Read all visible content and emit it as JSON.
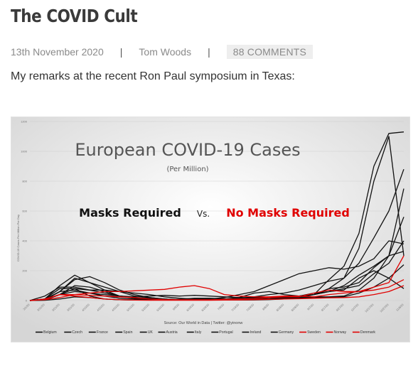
{
  "article": {
    "title": "The COVID Cult",
    "date": "13th November 2020",
    "author": "Tom Woods",
    "comments": "88 COMMENTS",
    "intro": "My remarks at the recent Ron Paul symposium in Texas:"
  },
  "chart_data": {
    "type": "line",
    "title": "European COVID-19 Cases",
    "subtitle": "(Per Million)",
    "annotation_left": "Masks Required",
    "annotation_vs": "Vs.",
    "annotation_right": "No Masks Required",
    "ylabel": "COVID-19 Cases Per Million Per Day",
    "source": "Source: Our World in Data | Twitter: @yinonw",
    "ylim": [
      0,
      1200
    ],
    "yticks": [
      0,
      200,
      400,
      600,
      800,
      1000,
      1200
    ],
    "x_ticks": [
      "3/1/20",
      "3/11/20",
      "3/21/20",
      "3/31/20",
      "4/10/20",
      "4/20/20",
      "4/30/20",
      "5/10/20",
      "5/20/20",
      "5/30/20",
      "6/9/20",
      "6/19/20",
      "6/29/20",
      "7/9/20",
      "7/19/20",
      "7/29/20",
      "8/8/20",
      "8/18/20",
      "8/28/20",
      "9/7/20",
      "9/17/20",
      "9/27/20",
      "10/7/20",
      "10/17/20",
      "10/27/20",
      "11/6/20"
    ],
    "colors": {
      "masks": "#111111",
      "no_masks": "#e00000"
    },
    "series": [
      {
        "name": "Belgium",
        "group": "masks",
        "values": [
          0,
          5,
          60,
          140,
          160,
          120,
          70,
          40,
          20,
          10,
          5,
          5,
          8,
          10,
          20,
          50,
          60,
          40,
          30,
          40,
          80,
          150,
          350,
          800,
          1100,
          300
        ]
      },
      {
        "name": "Czech",
        "group": "masks",
        "values": [
          0,
          2,
          10,
          25,
          20,
          10,
          5,
          4,
          3,
          5,
          8,
          15,
          15,
          12,
          10,
          10,
          12,
          15,
          20,
          40,
          140,
          230,
          450,
          900,
          1120,
          1130
        ]
      },
      {
        "name": "France",
        "group": "masks",
        "values": [
          0,
          5,
          40,
          100,
          90,
          60,
          30,
          20,
          15,
          10,
          5,
          5,
          8,
          10,
          15,
          25,
          40,
          50,
          70,
          100,
          130,
          150,
          250,
          420,
          600,
          880
        ]
      },
      {
        "name": "Spain",
        "group": "masks",
        "values": [
          0,
          10,
          100,
          170,
          120,
          90,
          60,
          30,
          20,
          10,
          5,
          5,
          10,
          20,
          40,
          60,
          100,
          140,
          180,
          200,
          220,
          210,
          230,
          280,
          400,
          380
        ]
      },
      {
        "name": "UK",
        "group": "masks",
        "values": [
          0,
          3,
          40,
          80,
          70,
          70,
          60,
          50,
          40,
          25,
          15,
          10,
          8,
          8,
          8,
          10,
          12,
          15,
          20,
          40,
          60,
          100,
          170,
          230,
          300,
          330
        ]
      },
      {
        "name": "Austria",
        "group": "masks",
        "values": [
          0,
          10,
          80,
          80,
          30,
          10,
          5,
          4,
          3,
          3,
          3,
          5,
          8,
          10,
          12,
          15,
          20,
          20,
          25,
          40,
          80,
          90,
          120,
          220,
          300,
          750
        ]
      },
      {
        "name": "Italy",
        "group": "masks",
        "values": [
          0,
          30,
          90,
          90,
          70,
          50,
          30,
          20,
          10,
          8,
          5,
          4,
          4,
          3,
          3,
          4,
          6,
          10,
          20,
          25,
          25,
          30,
          70,
          150,
          300,
          560
        ]
      },
      {
        "name": "Portugal",
        "group": "masks",
        "values": [
          0,
          5,
          40,
          60,
          50,
          40,
          30,
          25,
          30,
          35,
          30,
          35,
          30,
          25,
          20,
          20,
          20,
          25,
          30,
          40,
          60,
          80,
          100,
          180,
          250,
          400
        ]
      },
      {
        "name": "Ireland",
        "group": "masks",
        "values": [
          0,
          5,
          60,
          150,
          120,
          70,
          30,
          15,
          8,
          5,
          3,
          3,
          4,
          5,
          5,
          10,
          20,
          25,
          30,
          50,
          60,
          70,
          150,
          200,
          150,
          80
        ]
      },
      {
        "name": "Germany",
        "group": "masks",
        "values": [
          0,
          10,
          60,
          70,
          50,
          30,
          15,
          10,
          8,
          6,
          5,
          5,
          5,
          5,
          5,
          8,
          12,
          15,
          15,
          20,
          20,
          25,
          50,
          90,
          150,
          240
        ]
      },
      {
        "name": "Sweden",
        "group": "no_masks",
        "values": [
          0,
          5,
          20,
          40,
          50,
          60,
          60,
          65,
          70,
          75,
          90,
          100,
          80,
          40,
          30,
          25,
          25,
          30,
          30,
          25,
          40,
          50,
          60,
          90,
          120,
          300
        ]
      },
      {
        "name": "Norway",
        "group": "no_masks",
        "values": [
          0,
          10,
          40,
          30,
          20,
          10,
          5,
          3,
          2,
          2,
          2,
          2,
          2,
          3,
          4,
          5,
          8,
          10,
          12,
          15,
          18,
          20,
          25,
          40,
          60,
          100
        ]
      },
      {
        "name": "Denmark",
        "group": "no_masks",
        "values": [
          0,
          8,
          40,
          40,
          35,
          30,
          25,
          20,
          10,
          6,
          5,
          5,
          5,
          8,
          10,
          12,
          20,
          25,
          25,
          50,
          70,
          60,
          60,
          70,
          90,
          140
        ]
      }
    ]
  }
}
